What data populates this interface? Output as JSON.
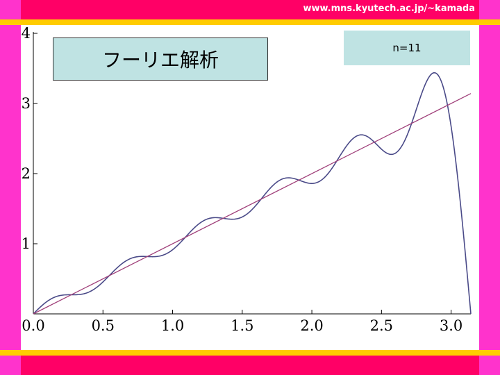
{
  "header": {
    "url_text": "www.mns.kyutech.ac.jp/~kamada"
  },
  "title_box": {
    "text": "フーリエ解析"
  },
  "n_box": {
    "text": "n=11"
  },
  "colors": {
    "side": "#ff33cc",
    "band": "#ff0066",
    "stripe": "#ffcc00",
    "box": "#bfe3e3",
    "series_fourier": "#4a4a88",
    "series_line": "#a0407a"
  },
  "chart_data": {
    "type": "line",
    "xlim": [
      0,
      3.14159
    ],
    "ylim": [
      0,
      4
    ],
    "x_ticks": [
      "0.0",
      "0.5",
      "1.0",
      "1.5",
      "2.0",
      "2.5",
      "3.0"
    ],
    "x_tick_values": [
      0.0,
      0.5,
      1.0,
      1.5,
      2.0,
      2.5,
      3.0
    ],
    "y_ticks": [
      "1",
      "2",
      "3",
      "4"
    ],
    "y_tick_values": [
      1,
      2,
      3,
      4
    ],
    "grid": false,
    "series": [
      {
        "function": "fourier_sum",
        "terms": 11
      },
      {
        "function": "y = x"
      }
    ]
  }
}
